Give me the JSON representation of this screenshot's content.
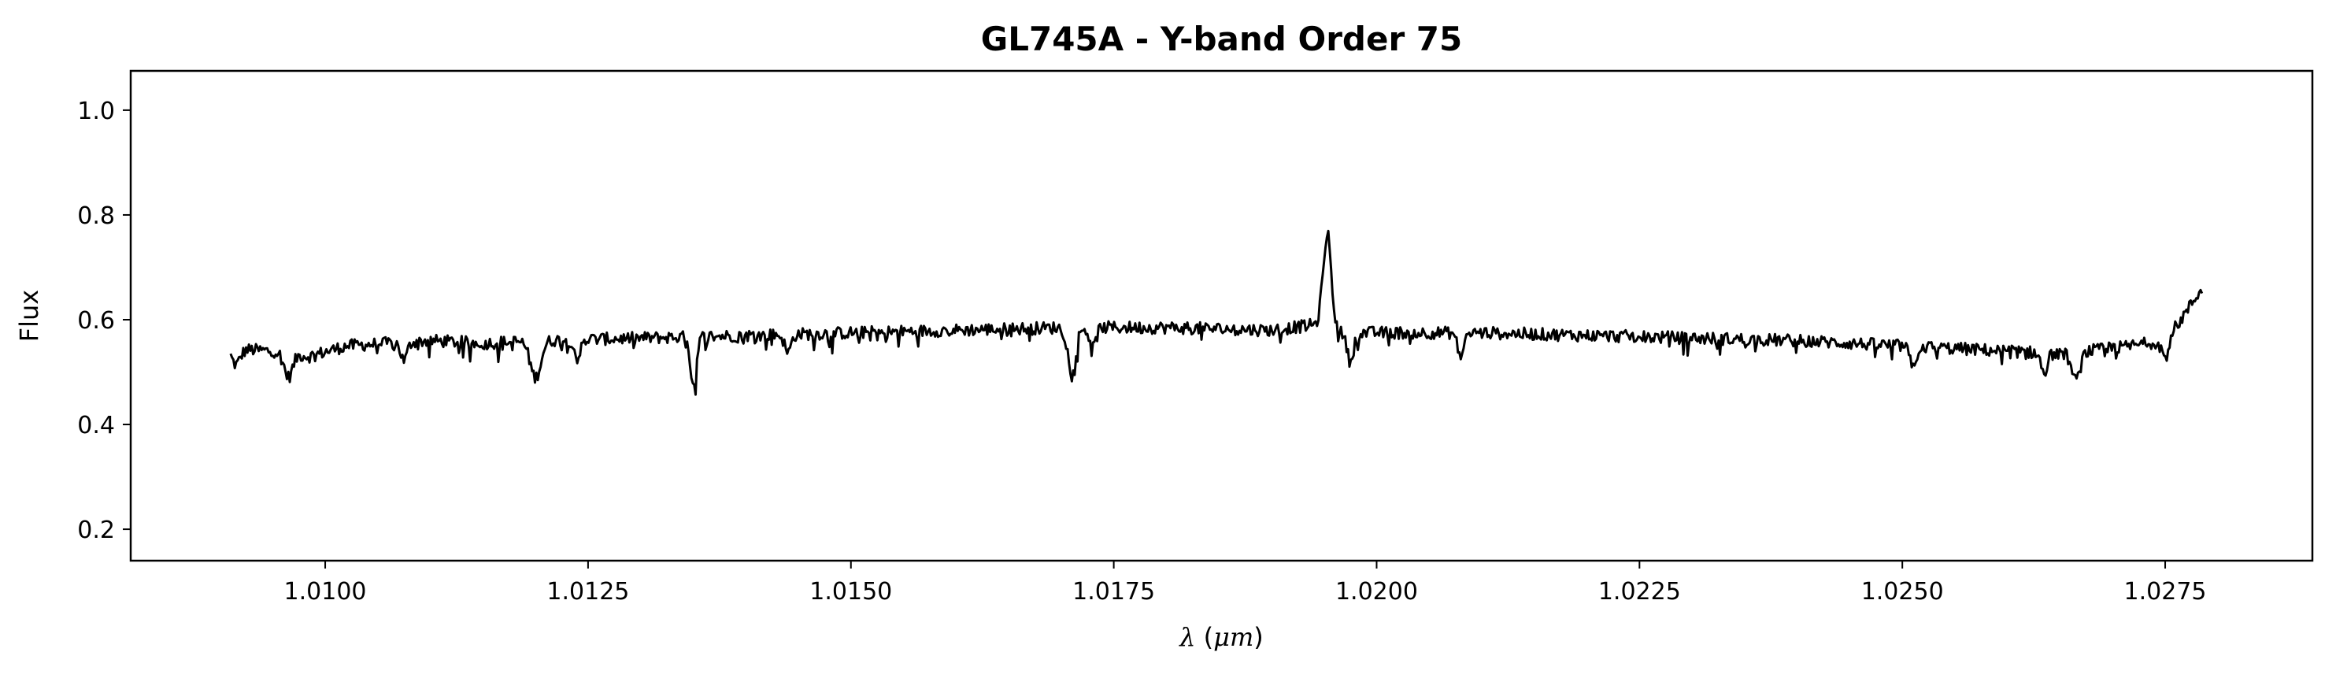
{
  "chart_data": {
    "type": "line",
    "title": "GL745A - Y-band Order 75",
    "xlabel_parts": [
      {
        "text": "λ",
        "italic": true
      },
      {
        "text": " (",
        "italic": false
      },
      {
        "text": "μm",
        "italic": true
      },
      {
        "text": ")",
        "italic": false
      }
    ],
    "ylabel": "Flux",
    "xlim": [
      1.00815,
      1.0289
    ],
    "ylim": [
      0.14,
      1.075
    ],
    "xticks": [
      1.01,
      1.0125,
      1.015,
      1.0175,
      1.02,
      1.0225,
      1.025,
      1.0275
    ],
    "xtick_labels": [
      "1.0100",
      "1.0125",
      "1.0150",
      "1.0175",
      "1.0200",
      "1.0225",
      "1.0250",
      "1.0275"
    ],
    "yticks": [
      0.2,
      0.4,
      0.6,
      0.8,
      1.0
    ],
    "ytick_labels": [
      "0.2",
      "0.4",
      "0.6",
      "0.8",
      "1.0"
    ],
    "grid": false,
    "line_color": "#000000",
    "series": [
      {
        "x_start": 1.0091,
        "x_end": 1.02785,
        "anchors": [
          [
            1.0091,
            0.545
          ],
          [
            1.0095,
            0.54
          ],
          [
            1.00985,
            0.53
          ],
          [
            1.0102,
            0.55
          ],
          [
            1.011,
            0.56
          ],
          [
            1.0115,
            0.555
          ],
          [
            1.012,
            0.56
          ],
          [
            1.013,
            0.565
          ],
          [
            1.014,
            0.57
          ],
          [
            1.015,
            0.575
          ],
          [
            1.016,
            0.58
          ],
          [
            1.017,
            0.585
          ],
          [
            1.018,
            0.585
          ],
          [
            1.019,
            0.58
          ],
          [
            1.0194,
            0.59
          ],
          [
            1.0196,
            0.575
          ],
          [
            1.02,
            0.575
          ],
          [
            1.021,
            0.575
          ],
          [
            1.022,
            0.57
          ],
          [
            1.023,
            0.565
          ],
          [
            1.024,
            0.56
          ],
          [
            1.025,
            0.55
          ],
          [
            1.026,
            0.54
          ],
          [
            1.0265,
            0.535
          ],
          [
            1.027,
            0.545
          ],
          [
            1.0275,
            0.56
          ],
          [
            1.02765,
            0.6
          ],
          [
            1.02785,
            0.66
          ]
        ],
        "features": [
          {
            "x": 1.00915,
            "depth": -0.03,
            "width": 4e-05
          },
          {
            "x": 1.00965,
            "depth": -0.045,
            "width": 4e-05
          },
          {
            "x": 1.01075,
            "depth": -0.035,
            "width": 3e-05
          },
          {
            "x": 1.012,
            "depth": -0.07,
            "width": 5e-05
          },
          {
            "x": 1.0124,
            "depth": -0.035,
            "width": 3e-05
          },
          {
            "x": 1.0135,
            "depth": -0.1,
            "width": 3e-05
          },
          {
            "x": 1.0144,
            "depth": -0.035,
            "width": 3e-05
          },
          {
            "x": 1.0171,
            "depth": -0.075,
            "width": 4e-05
          },
          {
            "x": 1.0173,
            "depth": -0.04,
            "width": 3e-05
          },
          {
            "x": 1.01953,
            "depth": 0.185,
            "width": 4e-05
          },
          {
            "x": 1.01975,
            "depth": -0.055,
            "width": 3e-05
          },
          {
            "x": 1.0208,
            "depth": -0.045,
            "width": 3e-05
          },
          {
            "x": 1.0251,
            "depth": -0.04,
            "width": 3e-05
          },
          {
            "x": 1.02635,
            "depth": -0.04,
            "width": 3e-05
          },
          {
            "x": 1.02665,
            "depth": -0.055,
            "width": 4e-05
          },
          {
            "x": 1.0275,
            "depth": -0.03,
            "width": 3e-05
          }
        ],
        "noise_amplitude": 0.012,
        "n_points": 1400
      }
    ]
  }
}
